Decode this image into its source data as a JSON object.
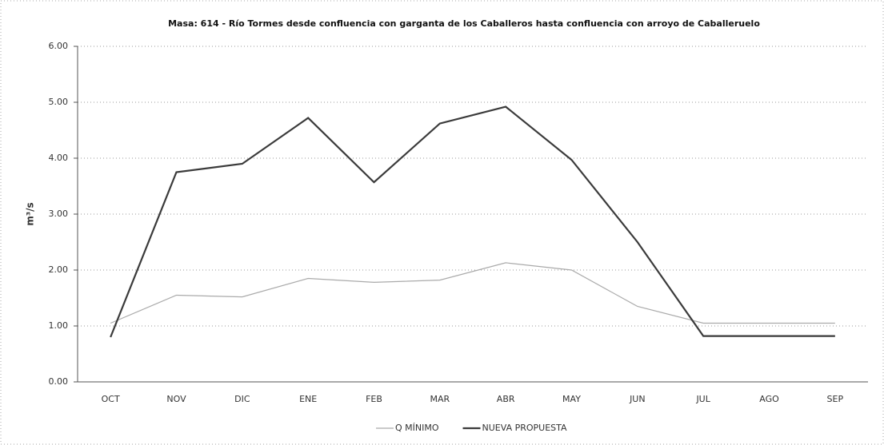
{
  "chart_data": {
    "type": "line",
    "title": "Masa: 614 - Río Tormes desde confluencia con garganta de los Caballeros hasta confluencia con arroyo de Caballeruelo",
    "y_label": "m³/s",
    "categories": [
      "OCT",
      "NOV",
      "DIC",
      "ENE",
      "FEB",
      "MAR",
      "ABR",
      "MAY",
      "JUN",
      "JUL",
      "AGO",
      "SEP"
    ],
    "series": [
      {
        "name": "Q MÍNIMO",
        "color": "#aaaaaa",
        "width": 1.2,
        "values": [
          1.05,
          1.55,
          1.52,
          1.85,
          1.78,
          1.82,
          2.13,
          2.0,
          1.35,
          1.05,
          1.05,
          1.05
        ]
      },
      {
        "name": "NUEVA PROPUESTA",
        "color": "#3a3a3a",
        "width": 2.2,
        "values": [
          0.8,
          3.75,
          3.9,
          4.72,
          3.57,
          4.62,
          4.92,
          3.97,
          2.5,
          0.82,
          0.82,
          0.82
        ]
      }
    ],
    "ylim": [
      0,
      6
    ],
    "yticks": [
      {
        "value": 0,
        "label": "0.00"
      },
      {
        "value": 1,
        "label": "1.00"
      },
      {
        "value": 2,
        "label": "2.00"
      },
      {
        "value": 3,
        "label": "3.00"
      },
      {
        "value": 4,
        "label": "4.00"
      },
      {
        "value": 5,
        "label": "5.00"
      },
      {
        "value": 6,
        "label": "6.00"
      }
    ],
    "grid": true,
    "legend": "bottom"
  }
}
